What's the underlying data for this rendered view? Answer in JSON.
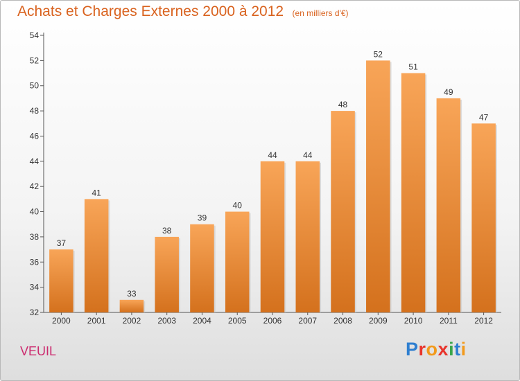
{
  "chart_data": {
    "type": "bar",
    "title": "Achats et Charges Externes 2000 à 2012",
    "subtitle": "(en milliers d'€)",
    "categories": [
      "2000",
      "2001",
      "2002",
      "2003",
      "2004",
      "2005",
      "2006",
      "2007",
      "2008",
      "2009",
      "2010",
      "2011",
      "2012"
    ],
    "values": [
      37,
      41,
      33,
      38,
      39,
      40,
      44,
      44,
      48,
      52,
      51,
      49,
      47
    ],
    "ylim": [
      32,
      54
    ],
    "yticks": [
      32,
      34,
      36,
      38,
      40,
      42,
      44,
      46,
      48,
      50,
      52,
      54
    ],
    "grid": false,
    "xlabel": "",
    "ylabel": "",
    "bar_color": "#f0913a"
  },
  "commune": "VEUIL",
  "logo": {
    "text": "Proxiti",
    "colors": [
      "#2f7fd0",
      "#e8342c",
      "#f29a1c",
      "#e8342c",
      "#3aa64a",
      "#2f7fd0",
      "#f29a1c"
    ]
  }
}
